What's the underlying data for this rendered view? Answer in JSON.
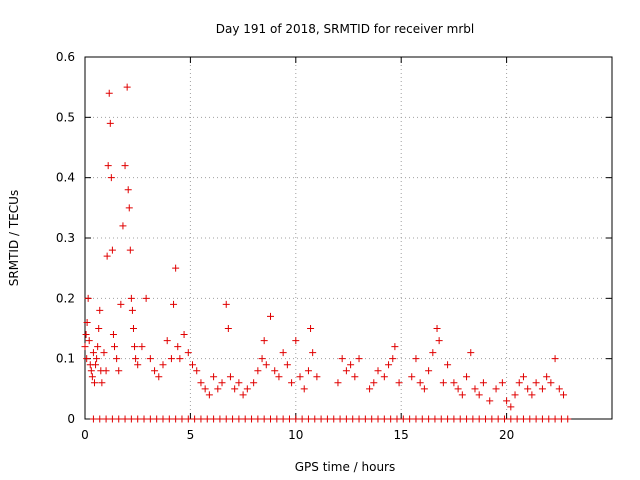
{
  "chart_data": {
    "type": "scatter",
    "title": "Day 191 of 2018, SRMTID for receiver mrbl",
    "xlabel": "GPS time / hours",
    "ylabel": "SRMTID / TECUs",
    "xlim": [
      0,
      25
    ],
    "ylim": [
      0,
      0.6
    ],
    "xticks": [
      0,
      5,
      10,
      15,
      20
    ],
    "yticks": [
      0,
      0.1,
      0.2,
      0.3,
      0.4,
      0.5,
      0.6
    ],
    "grid": true,
    "marker": "+",
    "color": "#e00000",
    "series": [
      {
        "name": "SRMTID",
        "x": [
          0.0,
          0.05,
          0.08,
          0.1,
          0.15,
          0.2,
          0.25,
          0.3,
          0.35,
          0.4,
          0.45,
          0.5,
          0.55,
          0.6,
          0.65,
          0.7,
          0.75,
          0.8,
          0.9,
          1.0,
          1.05,
          1.1,
          1.15,
          1.2,
          1.25,
          1.3,
          1.35,
          1.4,
          1.5,
          1.6,
          1.7,
          1.8,
          1.9,
          2.0,
          2.05,
          2.1,
          2.15,
          2.2,
          2.25,
          2.3,
          2.35,
          2.4,
          2.5,
          2.7,
          2.9,
          3.1,
          3.3,
          3.5,
          3.7,
          3.9,
          4.1,
          4.2,
          4.3,
          4.4,
          4.5,
          4.7,
          4.9,
          5.1,
          5.3,
          5.5,
          5.7,
          5.9,
          6.1,
          6.3,
          6.5,
          6.7,
          6.8,
          6.9,
          7.1,
          7.3,
          7.5,
          7.7,
          8.0,
          8.2,
          8.4,
          8.5,
          8.6,
          8.8,
          9.0,
          9.2,
          9.4,
          9.6,
          9.8,
          10.0,
          10.2,
          10.4,
          10.6,
          10.7,
          10.8,
          11.0,
          12.0,
          12.2,
          12.4,
          12.6,
          12.8,
          13.0,
          13.5,
          13.7,
          13.9,
          14.2,
          14.4,
          14.6,
          14.7,
          14.9,
          15.5,
          15.7,
          15.9,
          16.1,
          16.3,
          16.5,
          16.7,
          16.8,
          17.0,
          17.2,
          17.5,
          17.7,
          17.9,
          18.1,
          18.3,
          18.5,
          18.7,
          18.9,
          19.2,
          19.5,
          19.8,
          20.0,
          20.2,
          20.4,
          20.6,
          20.8,
          21.0,
          21.2,
          21.4,
          21.7,
          21.9,
          22.1,
          22.3,
          22.5,
          22.7
        ],
        "y": [
          0.12,
          0.14,
          0.1,
          0.16,
          0.2,
          0.13,
          0.09,
          0.08,
          0.07,
          0.11,
          0.06,
          0.09,
          0.1,
          0.12,
          0.15,
          0.18,
          0.08,
          0.06,
          0.11,
          0.08,
          0.27,
          0.42,
          0.54,
          0.49,
          0.4,
          0.28,
          0.14,
          0.12,
          0.1,
          0.08,
          0.19,
          0.32,
          0.42,
          0.55,
          0.38,
          0.35,
          0.28,
          0.2,
          0.18,
          0.15,
          0.12,
          0.1,
          0.09,
          0.12,
          0.2,
          0.1,
          0.08,
          0.07,
          0.09,
          0.13,
          0.1,
          0.19,
          0.25,
          0.12,
          0.1,
          0.14,
          0.11,
          0.09,
          0.08,
          0.06,
          0.05,
          0.04,
          0.07,
          0.05,
          0.06,
          0.19,
          0.15,
          0.07,
          0.05,
          0.06,
          0.04,
          0.05,
          0.06,
          0.08,
          0.1,
          0.13,
          0.09,
          0.17,
          0.08,
          0.07,
          0.11,
          0.09,
          0.06,
          0.13,
          0.07,
          0.05,
          0.08,
          0.15,
          0.11,
          0.07,
          0.06,
          0.1,
          0.08,
          0.09,
          0.07,
          0.1,
          0.05,
          0.06,
          0.08,
          0.07,
          0.09,
          0.1,
          0.12,
          0.06,
          0.07,
          0.1,
          0.06,
          0.05,
          0.08,
          0.11,
          0.15,
          0.13,
          0.06,
          0.09,
          0.06,
          0.05,
          0.04,
          0.07,
          0.11,
          0.05,
          0.04,
          0.06,
          0.03,
          0.05,
          0.06,
          0.03,
          0.02,
          0.04,
          0.06,
          0.07,
          0.05,
          0.04,
          0.06,
          0.05,
          0.07,
          0.06,
          0.1,
          0.05,
          0.04
        ],
        "zero_x": [
          0.4,
          0.7,
          1.0,
          1.3,
          1.6,
          1.9,
          2.2,
          2.5,
          2.8,
          3.1,
          3.4,
          3.7,
          4.0,
          4.3,
          4.6,
          4.9,
          5.2,
          5.5,
          5.8,
          6.1,
          6.4,
          6.7,
          7.0,
          7.3,
          7.6,
          7.9,
          8.2,
          8.5,
          8.8,
          9.1,
          9.4,
          9.7,
          10.0,
          10.3,
          10.6,
          10.9,
          11.2,
          11.5,
          11.8,
          12.1,
          12.4,
          12.7,
          13.0,
          13.3,
          13.6,
          13.9,
          14.2,
          14.5,
          14.8,
          15.1,
          15.4,
          15.7,
          16.0,
          16.3,
          16.6,
          16.9,
          17.2,
          17.5,
          17.8,
          18.1,
          18.4,
          18.7,
          19.0,
          19.3,
          19.6,
          19.9,
          20.2,
          20.5,
          20.8,
          21.1,
          21.4,
          21.7,
          22.0,
          22.3,
          22.6,
          22.9
        ]
      }
    ]
  }
}
